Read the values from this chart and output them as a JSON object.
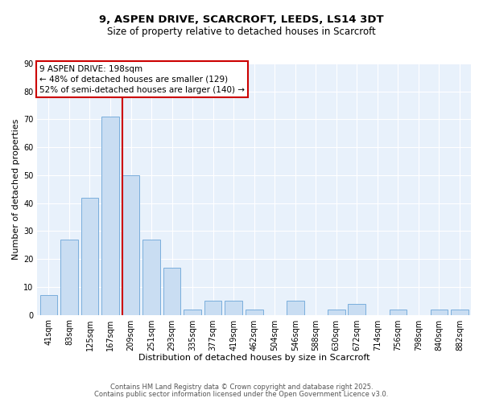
{
  "title_line1": "9, ASPEN DRIVE, SCARCROFT, LEEDS, LS14 3DT",
  "title_line2": "Size of property relative to detached houses in Scarcroft",
  "xlabel": "Distribution of detached houses by size in Scarcroft",
  "ylabel": "Number of detached properties",
  "bar_labels": [
    "41sqm",
    "83sqm",
    "125sqm",
    "167sqm",
    "209sqm",
    "251sqm",
    "293sqm",
    "335sqm",
    "377sqm",
    "419sqm",
    "462sqm",
    "504sqm",
    "546sqm",
    "588sqm",
    "630sqm",
    "672sqm",
    "714sqm",
    "756sqm",
    "798sqm",
    "840sqm",
    "882sqm"
  ],
  "bar_values": [
    7,
    27,
    42,
    71,
    50,
    27,
    17,
    2,
    5,
    5,
    2,
    0,
    5,
    0,
    2,
    4,
    0,
    2,
    0,
    2,
    2
  ],
  "bar_color": "#c9ddf2",
  "bar_edgecolor": "#7aaedc",
  "vline_position": 3.57,
  "vline_color": "#cc0000",
  "ylim": [
    0,
    90
  ],
  "yticks": [
    0,
    10,
    20,
    30,
    40,
    50,
    60,
    70,
    80,
    90
  ],
  "annotation_title": "9 ASPEN DRIVE: 198sqm",
  "annotation_line2": "← 48% of detached houses are smaller (129)",
  "annotation_line3": "52% of semi-detached houses are larger (140) →",
  "annotation_box_facecolor": "#ffffff",
  "annotation_box_edgecolor": "#cc0000",
  "background_color": "#e8f1fb",
  "grid_color": "#ffffff",
  "footer_line1": "Contains HM Land Registry data © Crown copyright and database right 2025.",
  "footer_line2": "Contains public sector information licensed under the Open Government Licence v3.0.",
  "title_fontsize": 9.5,
  "subtitle_fontsize": 8.5,
  "axis_label_fontsize": 8,
  "tick_fontsize": 7,
  "annotation_fontsize": 7.5,
  "footer_fontsize": 6
}
